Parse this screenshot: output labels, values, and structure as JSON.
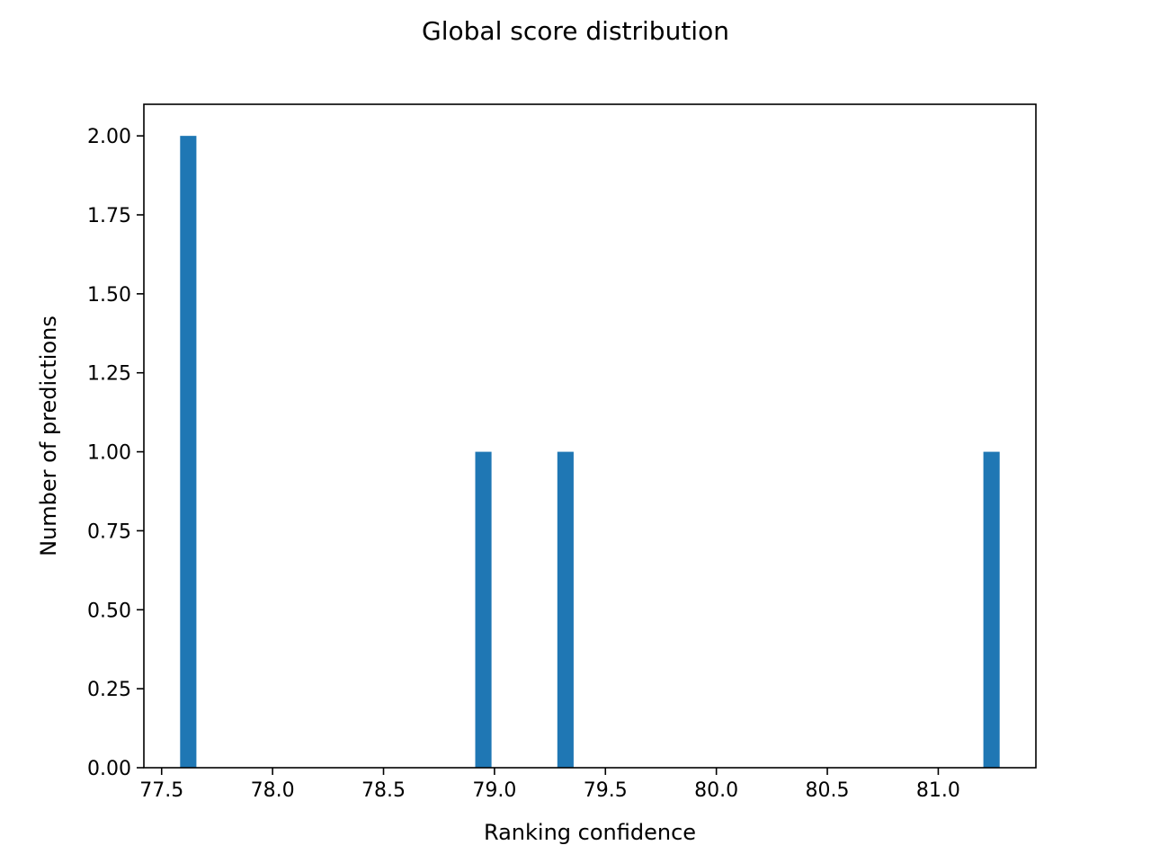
{
  "chart_data": {
    "type": "bar",
    "title": "Global score distribution",
    "xlabel": "Ranking confidence",
    "ylabel": "Number of predictions",
    "xlim": [
      77.42,
      81.44
    ],
    "ylim": [
      0,
      2.1
    ],
    "xticks": [
      "77.5",
      "78.0",
      "78.5",
      "79.0",
      "79.5",
      "80.0",
      "80.5",
      "81.0"
    ],
    "yticks": [
      "0.00",
      "0.25",
      "0.50",
      "0.75",
      "1.00",
      "1.25",
      "1.50",
      "1.75",
      "2.00"
    ],
    "bar_width": 0.0734,
    "bars": [
      {
        "x": 77.62,
        "value": 2
      },
      {
        "x": 78.95,
        "value": 1
      },
      {
        "x": 79.32,
        "value": 1
      },
      {
        "x": 81.24,
        "value": 1
      }
    ],
    "bar_color": "#1f77b4",
    "grid": false,
    "legend": false
  }
}
